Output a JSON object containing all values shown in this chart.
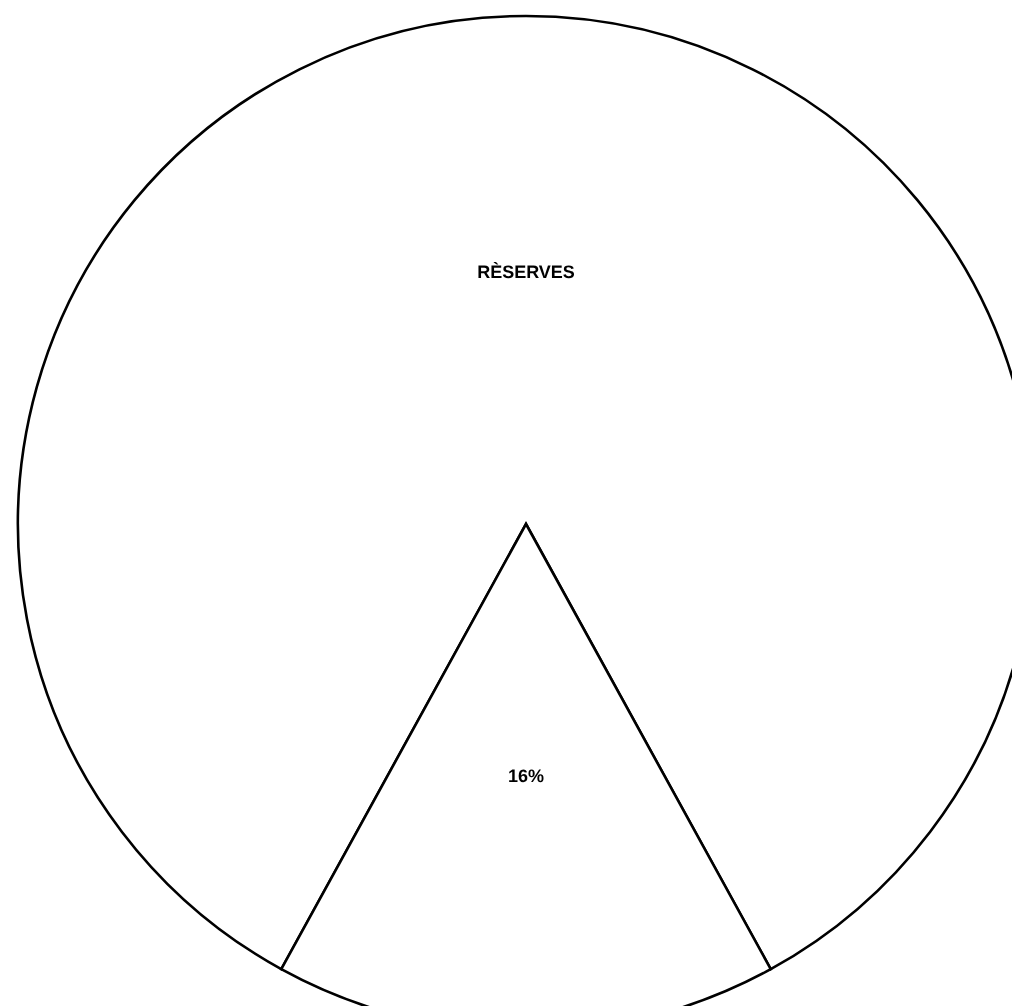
{
  "chart_data": {
    "type": "pie",
    "categories": [
      "RÈSERVES",
      null
    ],
    "values": [
      84,
      16
    ],
    "colors": [
      "#ffffff",
      "#ffffff"
    ],
    "value_labels": [
      null,
      "16%"
    ]
  }
}
